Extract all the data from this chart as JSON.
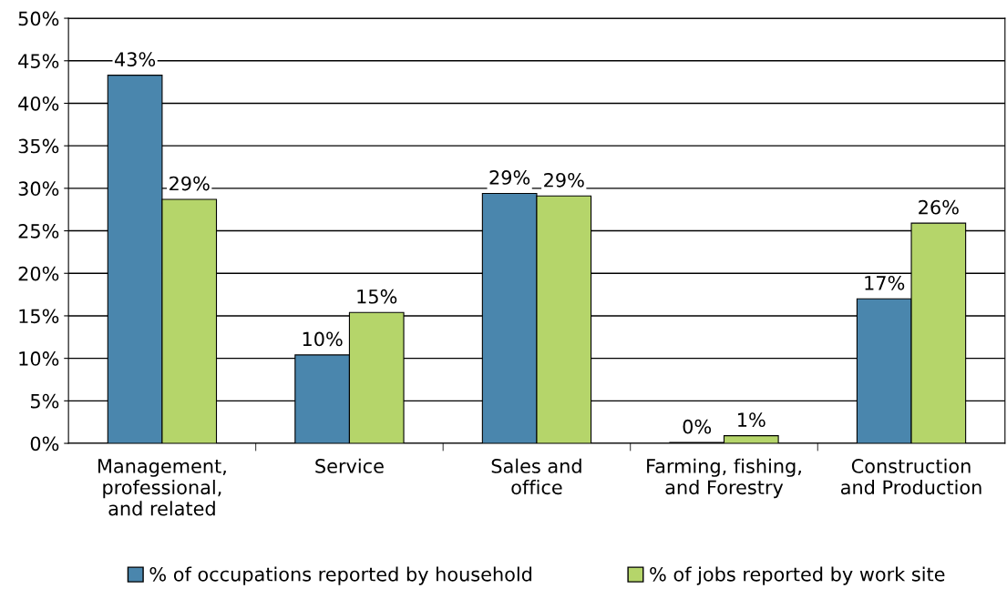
{
  "chart_data": {
    "type": "bar",
    "categories": [
      "Management,\nprofessional,\nand related",
      "Service",
      "Sales and\noffice",
      "Farming, fishing,\nand Forestry",
      "Construction\nand Production"
    ],
    "series": [
      {
        "name": "% of occupations reported by household",
        "color": "#4a86ad",
        "values": [
          43.3,
          10.4,
          29.4,
          0.1,
          17.0
        ],
        "value_labels": [
          "43%",
          "10%",
          "29%",
          "0%",
          "17%"
        ]
      },
      {
        "name": "% of jobs reported by work site",
        "color": "#b5d56a",
        "values": [
          28.7,
          15.4,
          29.1,
          0.9,
          25.9
        ],
        "value_labels": [
          "29%",
          "15%",
          "29%",
          "1%",
          "26%"
        ]
      }
    ],
    "ylim": [
      0,
      50
    ],
    "yticks": [
      {
        "value": 0,
        "label": "0%"
      },
      {
        "value": 5,
        "label": "5%"
      },
      {
        "value": 10,
        "label": "10%"
      },
      {
        "value": 15,
        "label": "15%"
      },
      {
        "value": 20,
        "label": "20%"
      },
      {
        "value": 25,
        "label": "25%"
      },
      {
        "value": 30,
        "label": "30%"
      },
      {
        "value": 35,
        "label": "35%"
      },
      {
        "value": 40,
        "label": "40%"
      },
      {
        "value": 45,
        "label": "45%"
      },
      {
        "value": 50,
        "label": "50%"
      }
    ],
    "grid": "y",
    "legend": "bottom"
  }
}
